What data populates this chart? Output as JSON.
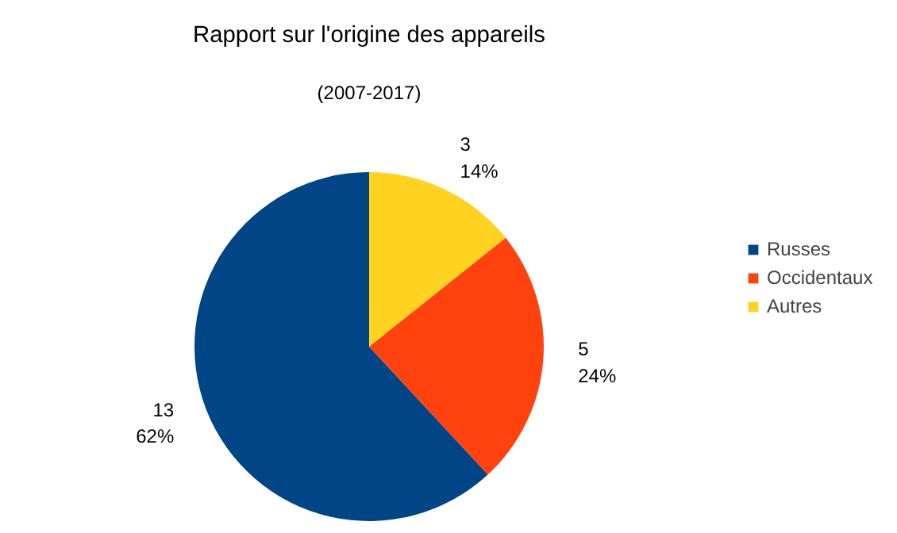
{
  "chart_data": {
    "type": "pie",
    "title": "Rapport sur l'origine des appareils",
    "subtitle": "(2007-2017)",
    "categories": [
      "Russes",
      "Occidentaux",
      "Autres"
    ],
    "values": [
      13,
      5,
      3
    ],
    "colors": [
      "#004586",
      "#ff420e",
      "#ffd320"
    ],
    "value_labels": [
      "13\n62%",
      "5\n24%",
      "3\n14%"
    ],
    "legend": "right"
  }
}
